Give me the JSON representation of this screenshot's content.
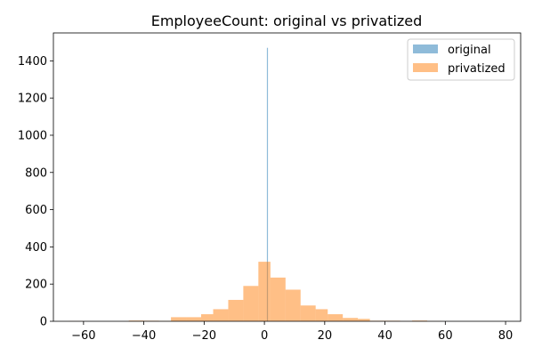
{
  "chart_data": {
    "type": "histogram",
    "title": "EmployeeCount: original vs privatized",
    "xlabel": "",
    "ylabel": "",
    "xlim": [
      -70,
      85
    ],
    "ylim": [
      0,
      1550
    ],
    "x_ticks": [
      -60,
      -40,
      -20,
      0,
      20,
      40,
      60,
      80
    ],
    "y_ticks": [
      0,
      200,
      400,
      600,
      800,
      1000,
      1200,
      1400
    ],
    "grid": false,
    "legend_position": "top-right",
    "series": [
      {
        "name": "original",
        "color": "#1f77b4",
        "opacity": 0.5,
        "bins": [
          {
            "x0": 1,
            "x1": 1,
            "value": 1470
          }
        ]
      },
      {
        "name": "privatized",
        "color": "#ff7f0e",
        "opacity": 0.5,
        "bins": [
          {
            "x0": -65,
            "x1": -60,
            "value": 1
          },
          {
            "x0": -45,
            "x1": -40,
            "value": 4
          },
          {
            "x0": -40,
            "x1": -35,
            "value": 3
          },
          {
            "x0": -35,
            "x1": -31,
            "value": 2
          },
          {
            "x0": -31,
            "x1": -26,
            "value": 22
          },
          {
            "x0": -26,
            "x1": -21,
            "value": 22
          },
          {
            "x0": -21,
            "x1": -17,
            "value": 38
          },
          {
            "x0": -17,
            "x1": -12,
            "value": 65
          },
          {
            "x0": -12,
            "x1": -7,
            "value": 115
          },
          {
            "x0": -7,
            "x1": -2,
            "value": 190
          },
          {
            "x0": -2,
            "x1": 2,
            "value": 320
          },
          {
            "x0": 2,
            "x1": 7,
            "value": 235
          },
          {
            "x0": 7,
            "x1": 12,
            "value": 170
          },
          {
            "x0": 12,
            "x1": 17,
            "value": 85
          },
          {
            "x0": 17,
            "x1": 21,
            "value": 65
          },
          {
            "x0": 21,
            "x1": 26,
            "value": 38
          },
          {
            "x0": 26,
            "x1": 31,
            "value": 18
          },
          {
            "x0": 31,
            "x1": 35,
            "value": 13
          },
          {
            "x0": 35,
            "x1": 40,
            "value": 3
          },
          {
            "x0": 40,
            "x1": 45,
            "value": 3
          },
          {
            "x0": 45,
            "x1": 49,
            "value": 1
          },
          {
            "x0": 49,
            "x1": 54,
            "value": 4
          },
          {
            "x0": 54,
            "x1": 59,
            "value": 1
          }
        ]
      }
    ]
  }
}
